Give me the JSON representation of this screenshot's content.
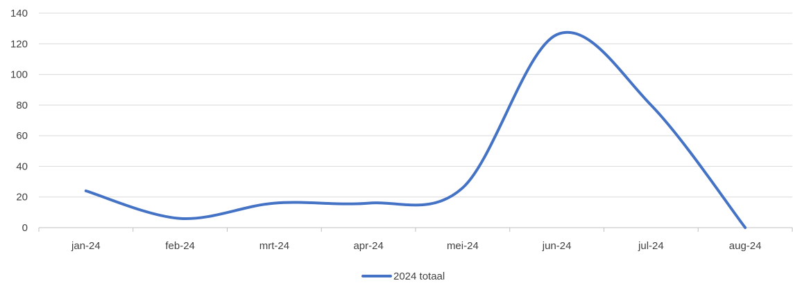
{
  "chart_data": {
    "type": "line",
    "categories": [
      "jan-24",
      "feb-24",
      "mrt-24",
      "apr-24",
      "mei-24",
      "jun-24",
      "jul-24",
      "aug-24"
    ],
    "series": [
      {
        "name": "2024 totaal",
        "values": [
          24,
          6,
          16,
          16,
          26,
          126,
          80,
          0
        ],
        "color": "#4472C4"
      }
    ],
    "ylim": [
      0,
      140
    ],
    "yticks": [
      0,
      20,
      40,
      60,
      80,
      100,
      120,
      140
    ],
    "grid": true,
    "legend": "bottom",
    "smooth": true
  }
}
